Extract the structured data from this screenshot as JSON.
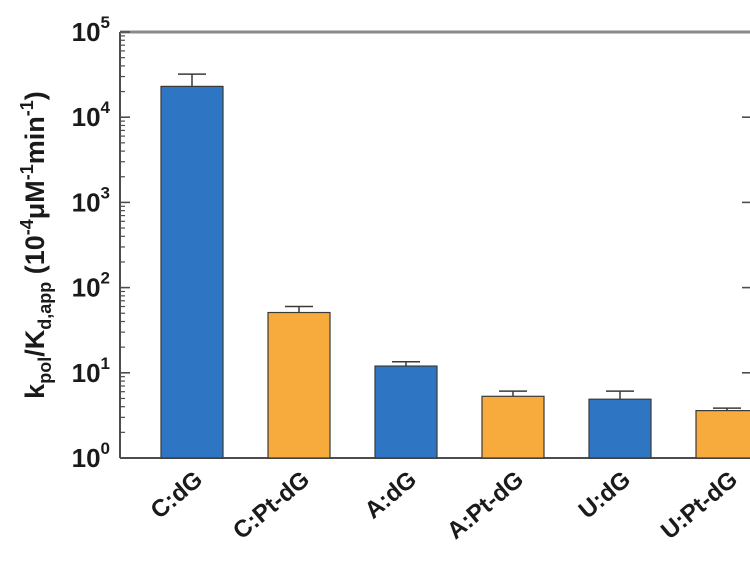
{
  "chart_data": {
    "type": "bar",
    "scale": "log",
    "ylabel_main": "k",
    "ylabel_sub_pol": "pol",
    "ylabel_slash": "/K",
    "ylabel_sub_d": "d,app",
    "ylabel_units_open": " (10",
    "ylabel_exp1": "-4",
    "ylabel_mu": "μM",
    "ylabel_exp2": "-1",
    "ylabel_min": "min",
    "ylabel_exp3": "-1",
    "ylabel_close": ")",
    "ylim": [
      1,
      100000
    ],
    "yticks": [
      {
        "base": "10",
        "exp": "0",
        "value": 1
      },
      {
        "base": "10",
        "exp": "1",
        "value": 10
      },
      {
        "base": "10",
        "exp": "2",
        "value": 100
      },
      {
        "base": "10",
        "exp": "3",
        "value": 1000
      },
      {
        "base": "10",
        "exp": "4",
        "value": 10000
      },
      {
        "base": "10",
        "exp": "5",
        "value": 100000
      }
    ],
    "categories": [
      "C:dG",
      "C:Pt-dG",
      "A:dG",
      "A:Pt-dG",
      "U:dG",
      "U:Pt-dG"
    ],
    "values": [
      23000,
      51,
      12,
      5.3,
      4.9,
      3.6
    ],
    "errors": [
      9000,
      9,
      1.5,
      0.8,
      1.2,
      0.25
    ],
    "colors": [
      "#2e75c3",
      "#f7ab3d",
      "#2e75c3",
      "#f7ab3d",
      "#2e75c3",
      "#f7ab3d"
    ],
    "bar_stroke": "#3a3a3a",
    "axis_color": "#4d4d4d"
  }
}
